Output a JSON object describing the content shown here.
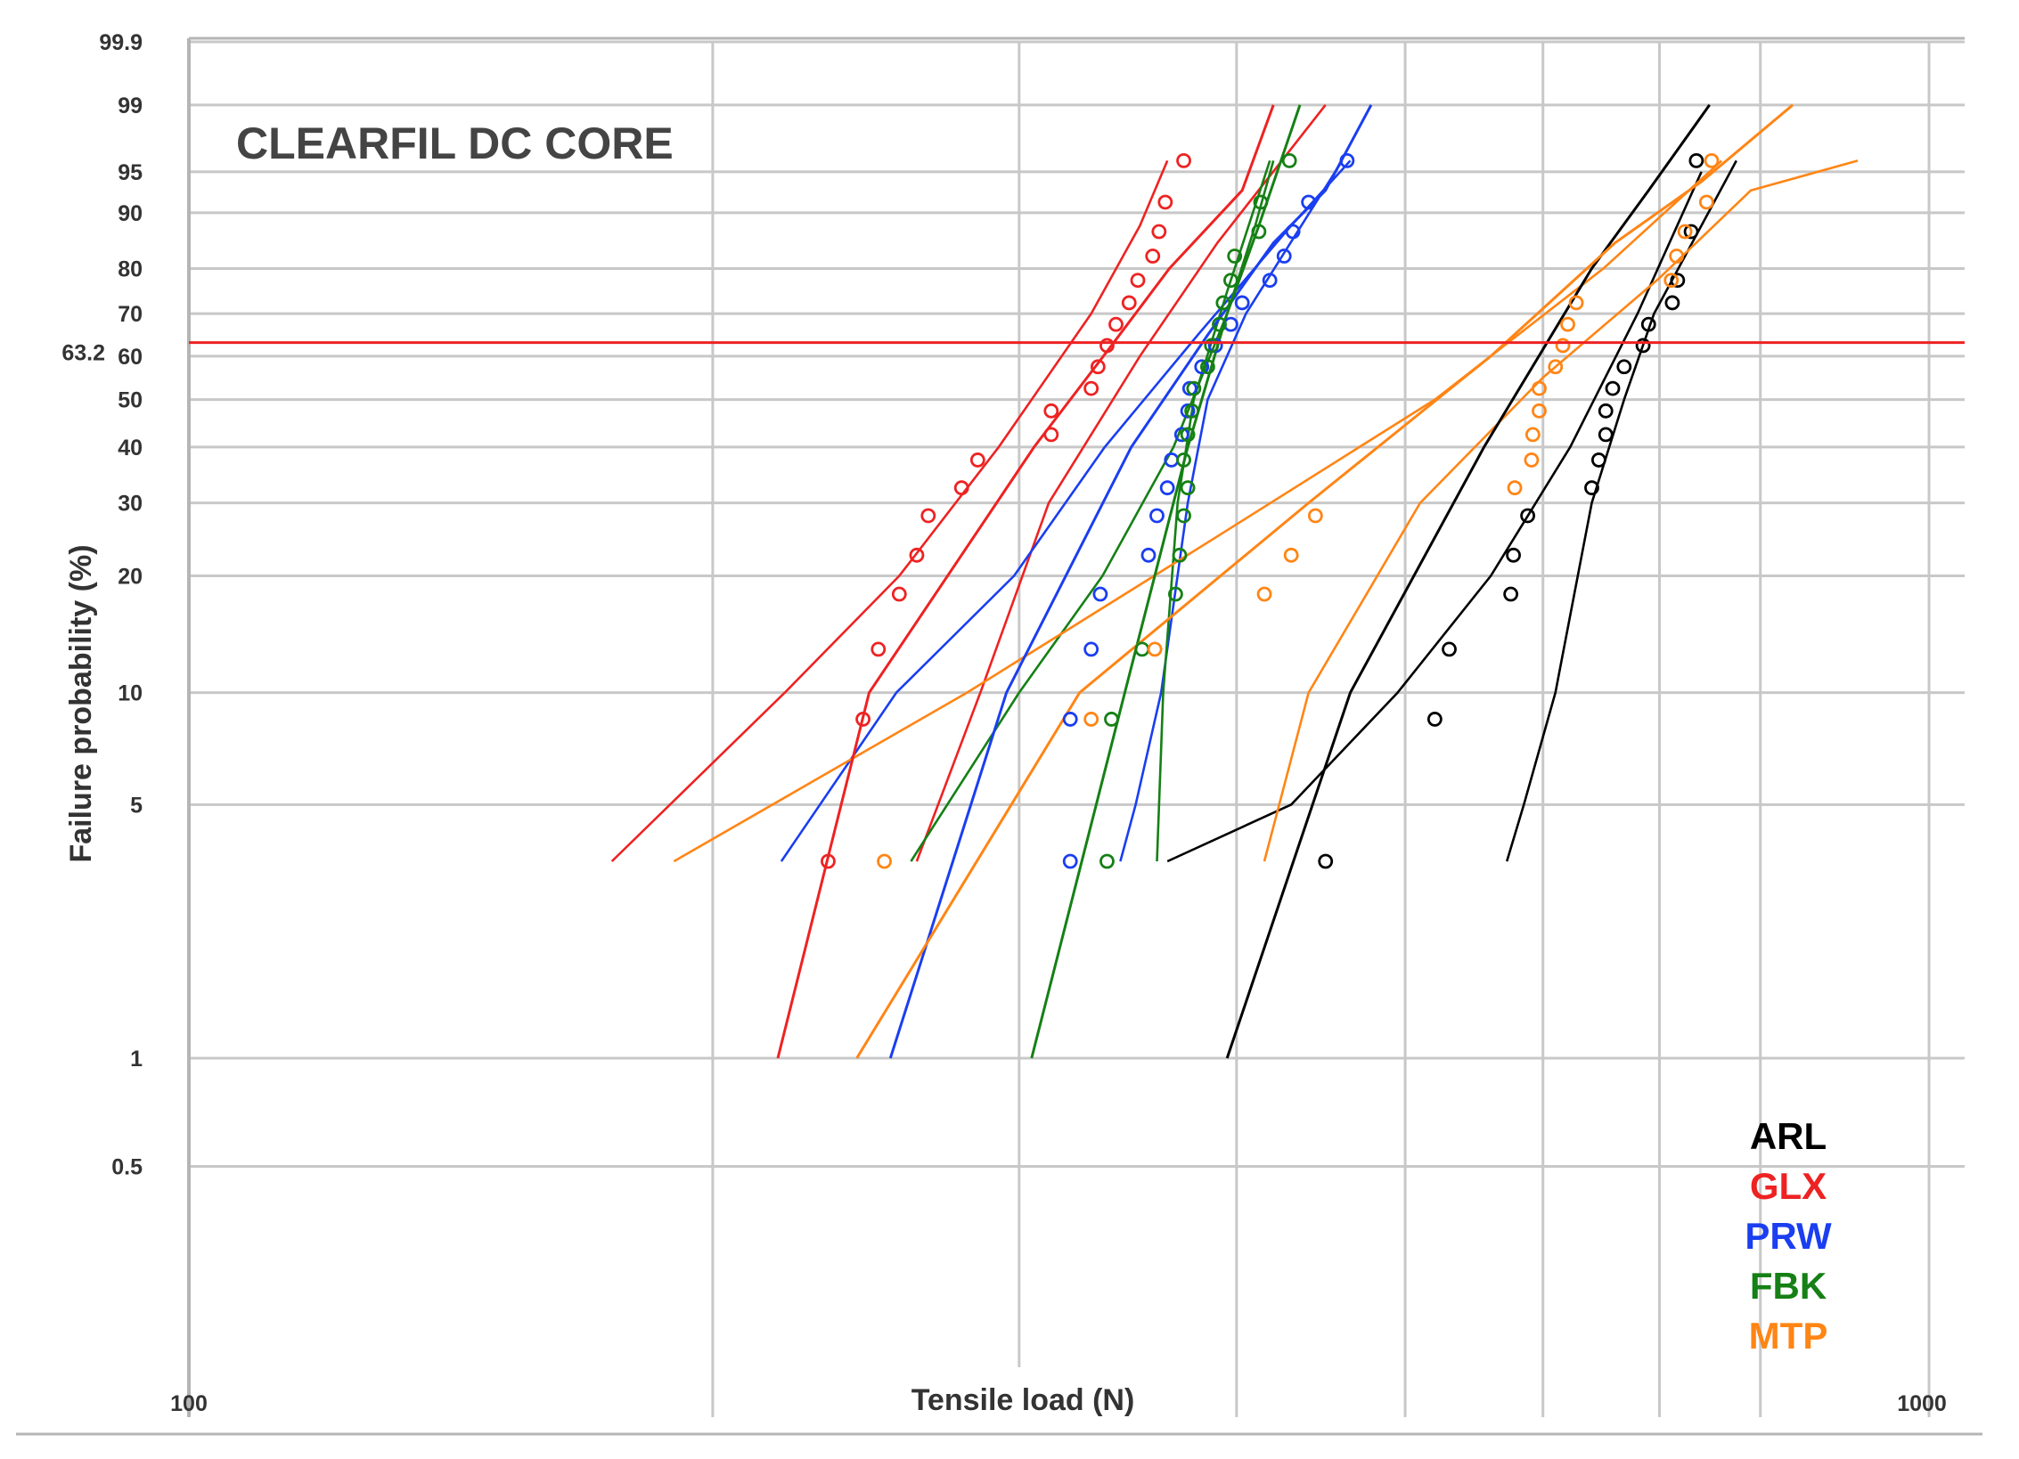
{
  "chart_data": {
    "type": "scatter",
    "panel_title": "CLEARFIL DC CORE",
    "xlabel": "Tensile load (N)",
    "ylabel": "Failure probability (%)",
    "x_scale": "log",
    "y_scale": "weibull",
    "xlim": [
      100,
      1000
    ],
    "ylim": [
      0.1,
      99.9
    ],
    "x_tick_labels": [
      "100",
      "1000"
    ],
    "x_gridlines": [
      100,
      200,
      300,
      400,
      500,
      600,
      700,
      800,
      1000
    ],
    "y_ticks": [
      0.5,
      1,
      5,
      10,
      20,
      30,
      40,
      50,
      60,
      70,
      80,
      90,
      95,
      99,
      99.9
    ],
    "y_tick_labels": [
      "0.5",
      "1",
      "5",
      "10",
      "20",
      "30",
      "40",
      "50",
      "60",
      "70",
      "80",
      "90",
      "95",
      "99",
      "99.9"
    ],
    "reference_line": {
      "y": 63.2,
      "label": "63.2",
      "color": "#ee2222"
    },
    "grid": true,
    "legend_position": "bottom-right",
    "series": [
      {
        "name": "ARL",
        "color": "#000000",
        "points": [
          [
            450,
            3.5
          ],
          [
            520,
            8.5
          ],
          [
            530,
            13
          ],
          [
            575,
            18
          ],
          [
            577,
            22.5
          ],
          [
            588,
            28
          ],
          [
            640,
            32.5
          ],
          [
            646,
            37.5
          ],
          [
            652,
            42.5
          ],
          [
            652,
            47.5
          ],
          [
            658,
            52.5
          ],
          [
            668,
            57.5
          ],
          [
            685,
            62.5
          ],
          [
            690,
            67.5
          ],
          [
            712,
            72.5
          ],
          [
            717,
            77.5
          ],
          [
            730,
            87
          ],
          [
            735,
            96
          ]
        ],
        "fit": [
          [
            395,
            1
          ],
          [
            465,
            10
          ],
          [
            555,
            40
          ],
          [
            640,
            80
          ],
          [
            690,
            93
          ],
          [
            748,
            99
          ]
        ],
        "bands": [
          [
            [
              365,
              3.5
            ],
            [
              430,
              5
            ],
            [
              495,
              10
            ],
            [
              560,
              20
            ],
            [
              622,
              40
            ],
            [
              680,
              70
            ],
            [
              740,
              95
            ]
          ],
          [
            [
              572,
              3.5
            ],
            [
              585,
              5
            ],
            [
              610,
              10
            ],
            [
              640,
              30
            ],
            [
              668,
              50
            ],
            [
              695,
              70
            ],
            [
              775,
              96
            ]
          ]
        ]
      },
      {
        "name": "GLX",
        "color": "#ee2222",
        "points": [
          [
            233,
            3.5
          ],
          [
            244,
            8.5
          ],
          [
            249,
            13
          ],
          [
            256,
            18
          ],
          [
            262,
            22.5
          ],
          [
            266,
            28
          ],
          [
            278,
            32.5
          ],
          [
            284,
            37.5
          ],
          [
            313,
            42.5
          ],
          [
            313,
            47.5
          ],
          [
            330,
            52.5
          ],
          [
            333,
            57.5
          ],
          [
            337,
            62.5
          ],
          [
            341,
            67.5
          ],
          [
            347,
            72.5
          ],
          [
            351,
            77.5
          ],
          [
            358,
            82.5
          ],
          [
            361,
            87
          ],
          [
            364,
            91.5
          ],
          [
            373,
            96
          ]
        ],
        "fit": [
          [
            218,
            1
          ],
          [
            246,
            10
          ],
          [
            306,
            40
          ],
          [
            340,
            63.2
          ],
          [
            366,
            80
          ],
          [
            403,
            93
          ],
          [
            420,
            99
          ]
        ],
        "bands": [
          [
            [
              175,
              3.5
            ],
            [
              220,
              10
            ],
            [
              256,
              20
            ],
            [
              292,
              40
            ],
            [
              330,
              70
            ],
            [
              352,
              88
            ],
            [
              365,
              96
            ]
          ],
          [
            [
              262,
              3.5
            ],
            [
              285,
              10
            ],
            [
              312,
              30
            ],
            [
              352,
              60
            ],
            [
              390,
              85
            ],
            [
              450,
              99
            ]
          ]
        ]
      },
      {
        "name": "PRW",
        "color": "#1a3ef0",
        "points": [
          [
            321,
            3.5
          ],
          [
            321,
            8.5
          ],
          [
            330,
            13
          ],
          [
            334,
            18
          ],
          [
            356,
            22.5
          ],
          [
            360,
            28
          ],
          [
            365,
            32.5
          ],
          [
            367,
            37.5
          ],
          [
            372,
            42.5
          ],
          [
            375,
            47.5
          ],
          [
            376,
            52.5
          ],
          [
            382,
            57.5
          ],
          [
            389,
            62.5
          ],
          [
            397,
            67.5
          ],
          [
            403,
            72.5
          ],
          [
            418,
            77.5
          ],
          [
            426,
            82.5
          ],
          [
            431,
            87
          ],
          [
            440,
            91.5
          ],
          [
            463,
            96
          ]
        ],
        "fit": [
          [
            253,
            1
          ],
          [
            295,
            10
          ],
          [
            348,
            40
          ],
          [
            385,
            65
          ],
          [
            420,
            85
          ],
          [
            450,
            93
          ],
          [
            478,
            99
          ]
        ],
        "bands": [
          [
            [
              219,
              3.5
            ],
            [
              255,
              10
            ],
            [
              298,
              20
            ],
            [
              336,
              40
            ],
            [
              380,
              65
            ],
            [
              430,
              88
            ],
            [
              465,
              96
            ]
          ],
          [
            [
              343,
              3.5
            ],
            [
              350,
              5
            ],
            [
              362,
              10
            ],
            [
              375,
              30
            ],
            [
              385,
              50
            ],
            [
              405,
              70
            ],
            [
              460,
              96
            ]
          ]
        ]
      },
      {
        "name": "FBK",
        "color": "#158015",
        "points": [
          [
            337,
            3.5
          ],
          [
            339,
            8.5
          ],
          [
            353,
            13
          ],
          [
            369,
            18
          ],
          [
            371,
            22.5
          ],
          [
            373,
            28
          ],
          [
            375,
            32.5
          ],
          [
            373,
            37.5
          ],
          [
            375,
            42.5
          ],
          [
            377,
            47.5
          ],
          [
            378,
            52.5
          ],
          [
            385,
            57.5
          ],
          [
            387,
            62.5
          ],
          [
            391,
            67.5
          ],
          [
            393,
            72.5
          ],
          [
            397,
            77.5
          ],
          [
            399,
            82.5
          ],
          [
            412,
            87
          ],
          [
            413,
            91.5
          ],
          [
            429,
            96
          ]
        ],
        "fit": [
          [
            305,
            1
          ],
          [
            345,
            10
          ],
          [
            375,
            40
          ],
          [
            395,
            70
          ],
          [
            412,
            88
          ],
          [
            435,
            99
          ]
        ],
        "bands": [
          [
            [
              260,
              3.5
            ],
            [
              300,
              10
            ],
            [
              335,
              20
            ],
            [
              368,
              40
            ],
            [
              395,
              70
            ],
            [
              410,
              88
            ],
            [
              420,
              96
            ]
          ],
          [
            [
              360,
              3.5
            ],
            [
              363,
              10
            ],
            [
              370,
              30
            ],
            [
              378,
              50
            ],
            [
              395,
              75
            ],
            [
              418,
              96
            ]
          ]
        ]
      },
      {
        "name": "MTP",
        "color": "#ff8515",
        "points": [
          [
            251,
            3.5
          ],
          [
            330,
            8.5
          ],
          [
            359,
            13
          ],
          [
            415,
            18
          ],
          [
            430,
            22.5
          ],
          [
            444,
            28
          ],
          [
            578,
            32.5
          ],
          [
            591,
            37.5
          ],
          [
            592,
            42.5
          ],
          [
            597,
            47.5
          ],
          [
            597,
            52.5
          ],
          [
            610,
            57.5
          ],
          [
            616,
            62.5
          ],
          [
            620,
            67.5
          ],
          [
            627,
            72.5
          ],
          [
            711,
            77.5
          ],
          [
            716,
            82.5
          ],
          [
            724,
            87
          ],
          [
            745,
            91.5
          ],
          [
            750,
            96
          ]
        ],
        "fit": [
          [
            242,
            1
          ],
          [
            325,
            10
          ],
          [
            440,
            30
          ],
          [
            560,
            60
          ],
          [
            660,
            85
          ],
          [
            740,
            94
          ],
          [
            835,
            99
          ]
        ],
        "bands": [
          [
            [
              190,
              3.5
            ],
            [
              280,
              10
            ],
            [
              390,
              25
            ],
            [
              520,
              50
            ],
            [
              650,
              80
            ],
            [
              760,
              96
            ]
          ],
          [
            [
              415,
              3.5
            ],
            [
              440,
              10
            ],
            [
              510,
              30
            ],
            [
              600,
              55
            ],
            [
              700,
              78
            ],
            [
              790,
              93
            ],
            [
              910,
              96
            ]
          ]
        ]
      }
    ]
  }
}
